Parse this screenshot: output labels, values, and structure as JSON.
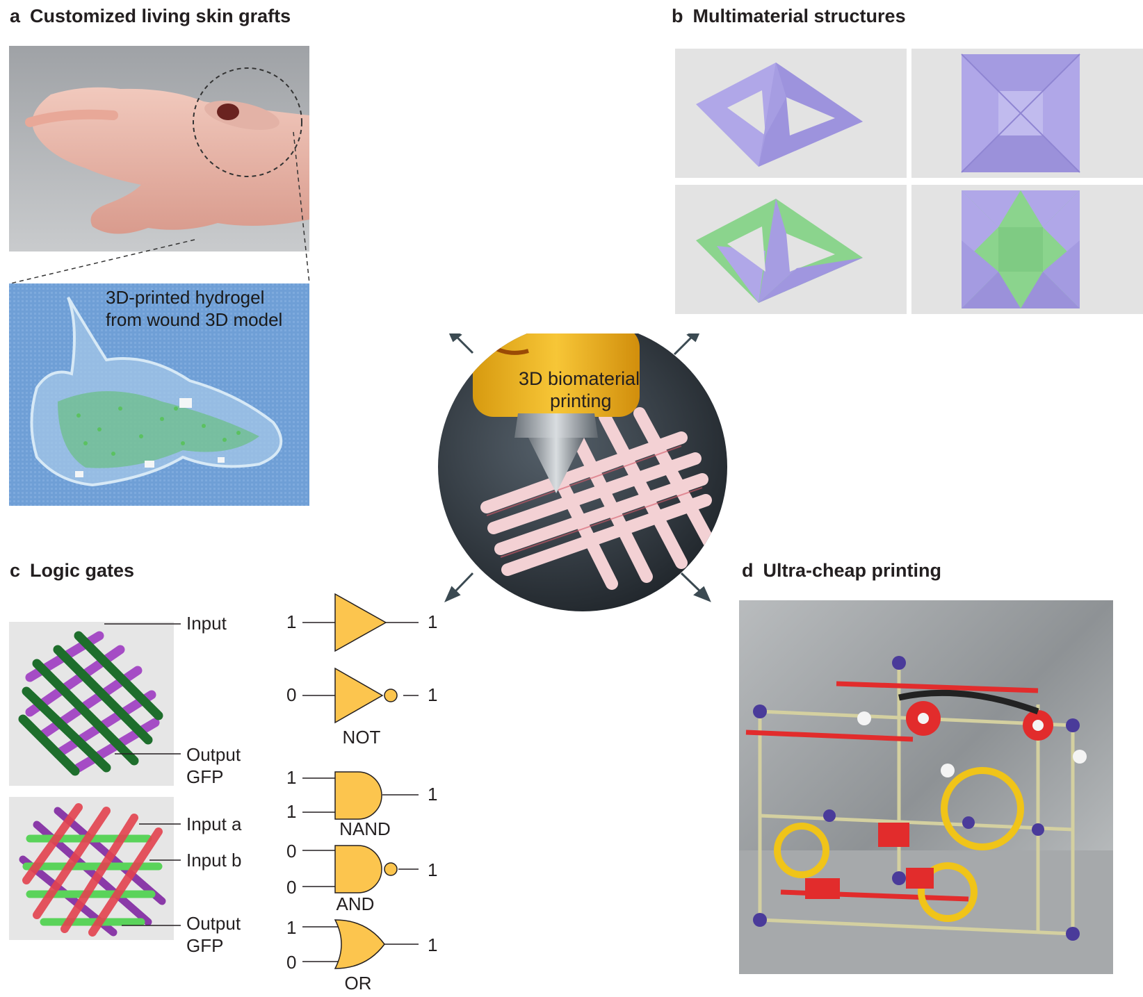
{
  "panels": {
    "a": {
      "letter": "a",
      "title": "Customized living skin grafts",
      "overlay_line1": "3D-printed hydrogel",
      "overlay_line2": "from wound 3D model"
    },
    "b": {
      "letter": "b",
      "title": "Multimaterial structures"
    },
    "c": {
      "letter": "c",
      "title": "Logic gates",
      "labels": {
        "input": "Input",
        "output1_line1": "Output",
        "output1_line2": "GFP",
        "input_a": "Input a",
        "input_b": "Input b",
        "output2_line1": "Output",
        "output2_line2": "GFP"
      }
    },
    "d": {
      "letter": "d",
      "title": "Ultra-cheap printing"
    }
  },
  "center": {
    "line1": "3D biomaterial",
    "line2": "printing"
  },
  "gates": [
    {
      "id": "buffer",
      "inputs": [
        "1"
      ],
      "output": "1",
      "label": ""
    },
    {
      "id": "not",
      "inputs": [
        "0"
      ],
      "output": "1",
      "label": "NOT"
    },
    {
      "id": "nand",
      "inputs": [
        "1",
        "1"
      ],
      "output": "1",
      "label": "NAND"
    },
    {
      "id": "and",
      "inputs": [
        "0",
        "0"
      ],
      "output": "1",
      "label": "AND"
    },
    {
      "id": "or",
      "inputs": [
        "1",
        "0"
      ],
      "output": "1",
      "label": "OR"
    }
  ],
  "colors": {
    "gate_fill": "#fcc54e",
    "purple": "#a99ee6",
    "green": "#8bd48d",
    "water_blue": "#6f9fd6",
    "nozzle_yellow": "#f4b81f",
    "print_pink": "#f6d9db",
    "arrow": "#3b4a52"
  }
}
